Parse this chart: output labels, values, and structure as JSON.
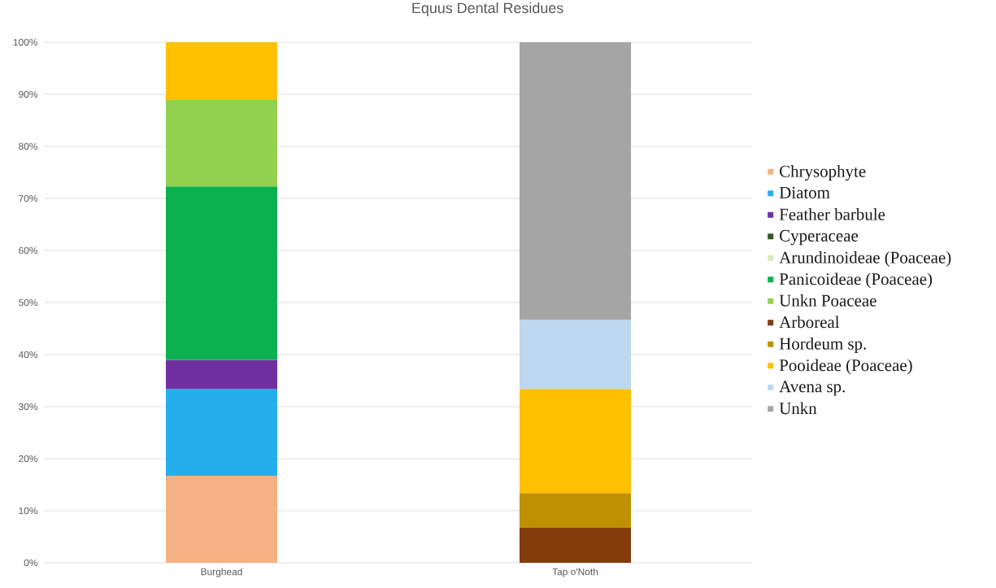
{
  "chart_data": {
    "type": "bar",
    "title": "Equus Dental Residues",
    "stacked": true,
    "categories": [
      "Burghead",
      "Tap o'Noth"
    ],
    "series": [
      {
        "name": "Chrysophyte",
        "color": "#f4b183",
        "values": [
          16.7,
          null
        ]
      },
      {
        "name": "Diatom",
        "color": "#24aeec",
        "values": [
          16.7,
          null
        ]
      },
      {
        "name": "Feather barbule",
        "color": "#7030a0",
        "values": [
          5.6,
          null
        ]
      },
      {
        "name": "Cyperaceae",
        "color": "#375623",
        "values": [
          null,
          null
        ]
      },
      {
        "name": "Arundinoideae (Poaceae)",
        "color": "#d6edbd",
        "values": [
          null,
          null
        ]
      },
      {
        "name": "Panicoideae (Poaceae)",
        "color": "#0bb04f",
        "values": [
          33.3,
          null
        ]
      },
      {
        "name": "Unkn Poaceae",
        "color": "#92d050",
        "values": [
          16.6,
          null
        ]
      },
      {
        "name": "Arboreal",
        "color": "#843c0c",
        "values": [
          null,
          6.7
        ]
      },
      {
        "name": "Hordeum sp.",
        "color": "#bf9000",
        "values": [
          null,
          6.7
        ]
      },
      {
        "name": "Pooideae (Poaceae)",
        "color": "#ffc000",
        "values": [
          11.1,
          20
        ]
      },
      {
        "name": "Avena sp.",
        "color": "#bdd7ee",
        "values": [
          null,
          13.3
        ]
      },
      {
        "name": "Unkn",
        "color": "#a5a5a5",
        "values": [
          null,
          53.3
        ]
      }
    ],
    "ylim": [
      0,
      100
    ],
    "yticks": [
      {
        "value": 0,
        "label": "0%"
      },
      {
        "value": 10,
        "label": "10%"
      },
      {
        "value": 20,
        "label": "20%"
      },
      {
        "value": 30,
        "label": "30%"
      },
      {
        "value": 40,
        "label": "40%"
      },
      {
        "value": 50,
        "label": "50%"
      },
      {
        "value": 60,
        "label": "60%"
      },
      {
        "value": 70,
        "label": "70%"
      },
      {
        "value": 80,
        "label": "80%"
      },
      {
        "value": 90,
        "label": "90%"
      },
      {
        "value": 100,
        "label": "100%"
      }
    ],
    "grid": "y",
    "legend": "right"
  }
}
